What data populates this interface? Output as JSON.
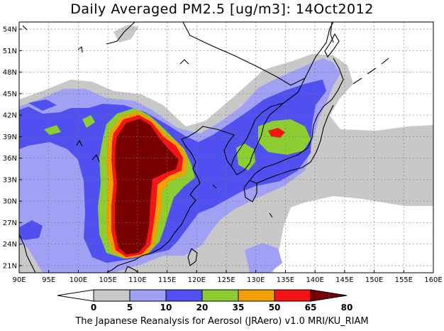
{
  "title": "Daily Averaged PM2.5 [ug/m3]: 14Oct2012",
  "footer": "The Japanese Reanalysis for Aerosol (JRAero) v1.0 MRI/KU_RIAM",
  "map": {
    "lon_range": [
      90,
      160
    ],
    "lat_range": [
      20,
      55
    ],
    "lon_ticks": [
      "90E",
      "95E",
      "100E",
      "105E",
      "110E",
      "115E",
      "120E",
      "125E",
      "130E",
      "135E",
      "140E",
      "145E",
      "150E",
      "155E",
      "160E"
    ],
    "lat_ticks": [
      "54N",
      "51N",
      "48N",
      "45N",
      "42N",
      "39N",
      "36N",
      "33N",
      "30N",
      "27N",
      "24N",
      "21N"
    ],
    "grid": true
  },
  "colorbar": {
    "levels": [
      "0",
      "5",
      "10",
      "20",
      "35",
      "50",
      "65",
      "80"
    ],
    "colors": [
      "#ffffff",
      "#c8c8c8",
      "#a0a0f5",
      "#5050f0",
      "#8ccd32",
      "#f0a000",
      "#f51414",
      "#780000"
    ]
  },
  "colors": {
    "gray": "#c8c8c8",
    "lightblue": "#a0a0f5",
    "blue": "#5050f0",
    "green": "#8ccd32",
    "orange": "#f0a000",
    "red": "#f51414",
    "maroon": "#780000"
  }
}
